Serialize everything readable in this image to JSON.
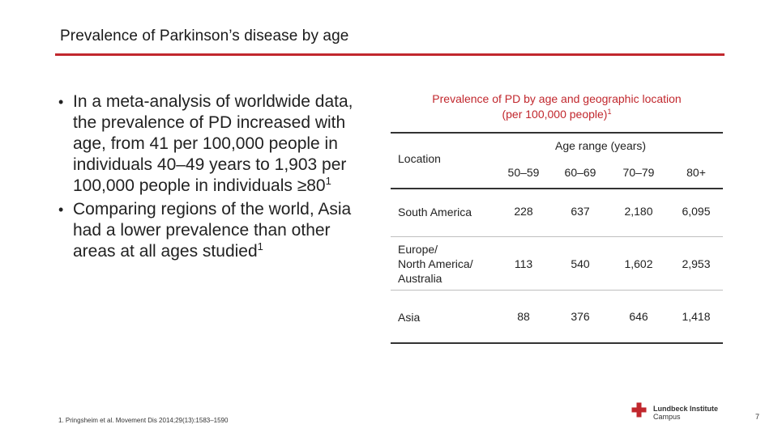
{
  "slide": {
    "title": "Prevalence of Parkinson’s disease by age",
    "page_number": "7"
  },
  "bullets": [
    {
      "text": "In a meta-analysis of worldwide data, the prevalence of PD increased with age, from 41 per 100,000 people in individuals 40–49 years to 1,903 per 100,000 people in individuals ≥80",
      "ref": "1"
    },
    {
      "text": "Comparing regions of the world, Asia had a lower prevalence than other areas at all ages studied",
      "ref": "1"
    }
  ],
  "table": {
    "title_line1": "Prevalence of PD by age and geographic location",
    "title_line2": "(per 100,000 people)",
    "title_ref": "1",
    "location_header": "Location",
    "age_header": "Age range (years)",
    "columns": [
      "50–59",
      "60–69",
      "70–79",
      "80+"
    ],
    "rows": [
      {
        "location_lines": [
          "South America"
        ],
        "values": [
          "228",
          "637",
          "2,180",
          "6,095"
        ]
      },
      {
        "location_lines": [
          "Europe/",
          "North America/",
          "Australia"
        ],
        "values": [
          "113",
          "540",
          "1,602",
          "2,953"
        ]
      },
      {
        "location_lines": [
          "Asia"
        ],
        "values": [
          "88",
          "376",
          "646",
          "1,418"
        ]
      }
    ]
  },
  "footnote": "1. Pringsheim et al. Movement Dis 2014;29(13):1583–1590",
  "logo": {
    "line1": "Lundbeck Institute",
    "line2": "Campus",
    "icon": "lundbeck-cross-icon",
    "color": "#c1272d"
  },
  "colors": {
    "accent": "#c1272d",
    "text": "#222222"
  }
}
